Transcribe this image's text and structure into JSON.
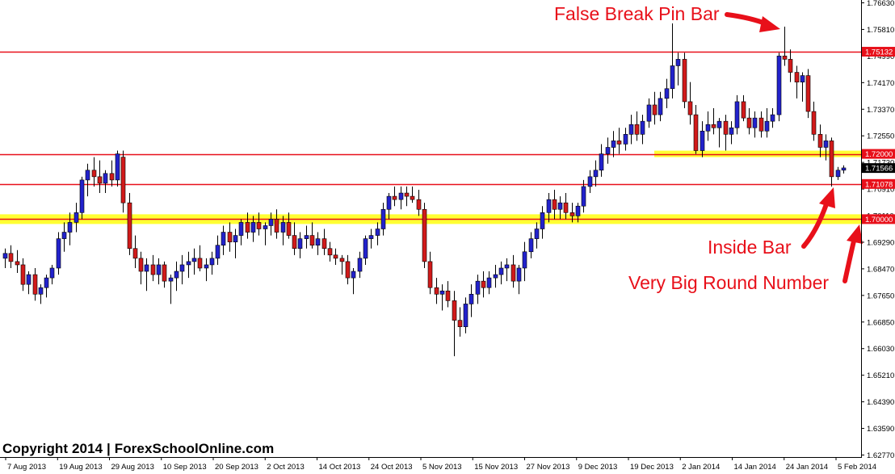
{
  "chart_data": {
    "type": "candlestick",
    "y_axis_ticks": [
      "1.76630",
      "1.75810",
      "1.74990",
      "1.74170",
      "1.73370",
      "1.72550",
      "1.71730",
      "1.70910",
      "1.70110",
      "1.69290",
      "1.68470",
      "1.67650",
      "1.66850",
      "1.66030",
      "1.65210",
      "1.64390",
      "1.63590",
      "1.62770"
    ],
    "ylim": [
      1.6277,
      1.7663
    ],
    "x_axis_labels": [
      "7 Aug 2013",
      "19 Aug 2013",
      "29 Aug 2013",
      "10 Sep 2013",
      "20 Sep 2013",
      "2 Oct 2013",
      "14 Oct 2013",
      "24 Oct 2013",
      "5 Nov 2013",
      "15 Nov 2013",
      "27 Nov 2013",
      "9 Dec 2013",
      "19 Dec 2013",
      "2 Jan 2014",
      "14 Jan 2014",
      "24 Jan 2014",
      "5 Feb 2014"
    ],
    "levels": [
      {
        "label": "1.75132",
        "value": 1.75132,
        "color": "#e8101a",
        "zone": false
      },
      {
        "label": "1.72000",
        "value": 1.72,
        "color": "#e8101a",
        "zone": true
      },
      {
        "label": "1.71078",
        "value": 1.71078,
        "color": "#e8101a",
        "zone": false
      },
      {
        "label": "1.70000",
        "value": 1.7,
        "color": "#e8101a",
        "zone": true
      }
    ],
    "current_price": "1.71566",
    "current_value": 1.71566,
    "candles": [
      [
        1.688,
        1.691,
        1.685,
        1.6895
      ],
      [
        1.6895,
        1.692,
        1.685,
        1.687
      ],
      [
        1.687,
        1.6905,
        1.6835,
        1.686
      ],
      [
        1.686,
        1.688,
        1.678,
        1.68
      ],
      [
        1.68,
        1.684,
        1.677,
        1.683
      ],
      [
        1.683,
        1.685,
        1.675,
        1.677
      ],
      [
        1.677,
        1.68,
        1.674,
        1.679
      ],
      [
        1.679,
        1.683,
        1.676,
        1.682
      ],
      [
        1.682,
        1.686,
        1.68,
        1.685
      ],
      [
        1.685,
        1.696,
        1.683,
        1.694
      ],
      [
        1.694,
        1.699,
        1.69,
        1.696
      ],
      [
        1.696,
        1.702,
        1.692,
        1.699
      ],
      [
        1.699,
        1.705,
        1.696,
        1.702
      ],
      [
        1.702,
        1.713,
        1.7,
        1.712
      ],
      [
        1.712,
        1.717,
        1.707,
        1.715
      ],
      [
        1.715,
        1.719,
        1.71,
        1.713
      ],
      [
        1.713,
        1.718,
        1.708,
        1.711
      ],
      [
        1.711,
        1.715,
        1.708,
        1.714
      ],
      [
        1.714,
        1.718,
        1.71,
        1.712
      ],
      [
        1.712,
        1.721,
        1.71,
        1.72
      ],
      [
        1.719,
        1.721,
        1.702,
        1.705
      ],
      [
        1.705,
        1.708,
        1.689,
        1.691
      ],
      [
        1.691,
        1.695,
        1.685,
        1.688
      ],
      [
        1.688,
        1.69,
        1.68,
        1.684
      ],
      [
        1.684,
        1.688,
        1.678,
        1.686
      ],
      [
        1.686,
        1.689,
        1.681,
        1.683
      ],
      [
        1.683,
        1.688,
        1.68,
        1.686
      ],
      [
        1.686,
        1.687,
        1.679,
        1.681
      ],
      [
        1.681,
        1.683,
        1.674,
        1.682
      ],
      [
        1.682,
        1.687,
        1.678,
        1.684
      ],
      [
        1.684,
        1.689,
        1.68,
        1.686
      ],
      [
        1.686,
        1.69,
        1.682,
        1.687
      ],
      [
        1.687,
        1.691,
        1.683,
        1.688
      ],
      [
        1.688,
        1.692,
        1.684,
        1.685
      ],
      [
        1.685,
        1.688,
        1.681,
        1.686
      ],
      [
        1.686,
        1.69,
        1.683,
        1.688
      ],
      [
        1.688,
        1.695,
        1.686,
        1.692
      ],
      [
        1.692,
        1.698,
        1.689,
        1.696
      ],
      [
        1.696,
        1.699,
        1.69,
        1.693
      ],
      [
        1.693,
        1.697,
        1.688,
        1.695
      ],
      [
        1.695,
        1.7,
        1.692,
        1.699
      ],
      [
        1.699,
        1.702,
        1.694,
        1.696
      ],
      [
        1.696,
        1.701,
        1.693,
        1.699
      ],
      [
        1.699,
        1.702,
        1.695,
        1.697
      ],
      [
        1.697,
        1.699,
        1.692,
        1.698
      ],
      [
        1.698,
        1.702,
        1.695,
        1.7
      ],
      [
        1.7,
        1.703,
        1.694,
        1.696
      ],
      [
        1.696,
        1.701,
        1.692,
        1.699
      ],
      [
        1.699,
        1.702,
        1.694,
        1.695
      ],
      [
        1.695,
        1.699,
        1.689,
        1.691
      ],
      [
        1.691,
        1.696,
        1.688,
        1.694
      ],
      [
        1.694,
        1.698,
        1.691,
        1.695
      ],
      [
        1.695,
        1.699,
        1.691,
        1.692
      ],
      [
        1.692,
        1.696,
        1.689,
        1.694
      ],
      [
        1.694,
        1.697,
        1.689,
        1.691
      ],
      [
        1.691,
        1.693,
        1.687,
        1.689
      ],
      [
        1.689,
        1.691,
        1.686,
        1.688
      ],
      [
        1.688,
        1.689,
        1.683,
        1.687
      ],
      [
        1.687,
        1.689,
        1.68,
        1.682
      ],
      [
        1.682,
        1.685,
        1.677,
        1.684
      ],
      [
        1.684,
        1.69,
        1.682,
        1.688
      ],
      [
        1.688,
        1.695,
        1.686,
        1.694
      ],
      [
        1.694,
        1.697,
        1.691,
        1.695
      ],
      [
        1.695,
        1.699,
        1.692,
        1.697
      ],
      [
        1.697,
        1.705,
        1.695,
        1.703
      ],
      [
        1.703,
        1.708,
        1.7,
        1.707
      ],
      [
        1.707,
        1.71,
        1.704,
        1.706
      ],
      [
        1.706,
        1.71,
        1.703,
        1.708
      ],
      [
        1.708,
        1.71,
        1.704,
        1.707
      ],
      [
        1.707,
        1.71,
        1.705,
        1.706
      ],
      [
        1.706,
        1.709,
        1.701,
        1.703
      ],
      [
        1.703,
        1.705,
        1.685,
        1.687
      ],
      [
        1.687,
        1.69,
        1.677,
        1.679
      ],
      [
        1.679,
        1.682,
        1.674,
        1.677
      ],
      [
        1.677,
        1.68,
        1.672,
        1.678
      ],
      [
        1.678,
        1.681,
        1.673,
        1.675
      ],
      [
        1.675,
        1.678,
        1.658,
        1.669
      ],
      [
        1.669,
        1.673,
        1.664,
        1.667
      ],
      [
        1.667,
        1.676,
        1.665,
        1.674
      ],
      [
        1.674,
        1.68,
        1.67,
        1.677
      ],
      [
        1.677,
        1.683,
        1.674,
        1.681
      ],
      [
        1.681,
        1.684,
        1.676,
        1.679
      ],
      [
        1.679,
        1.684,
        1.677,
        1.682
      ],
      [
        1.682,
        1.686,
        1.679,
        1.683
      ],
      [
        1.683,
        1.687,
        1.68,
        1.685
      ],
      [
        1.685,
        1.688,
        1.681,
        1.686
      ],
      [
        1.686,
        1.689,
        1.679,
        1.681
      ],
      [
        1.681,
        1.686,
        1.677,
        1.685
      ],
      [
        1.685,
        1.693,
        1.681,
        1.69
      ],
      [
        1.69,
        1.696,
        1.688,
        1.694
      ],
      [
        1.694,
        1.699,
        1.691,
        1.697
      ],
      [
        1.697,
        1.704,
        1.694,
        1.702
      ],
      [
        1.702,
        1.708,
        1.699,
        1.706
      ],
      [
        1.706,
        1.709,
        1.7,
        1.703
      ],
      [
        1.703,
        1.707,
        1.7,
        1.705
      ],
      [
        1.705,
        1.708,
        1.7,
        1.702
      ],
      [
        1.702,
        1.705,
        1.699,
        1.701
      ],
      [
        1.701,
        1.705,
        1.699,
        1.704
      ],
      [
        1.704,
        1.712,
        1.702,
        1.71
      ],
      [
        1.71,
        1.715,
        1.708,
        1.713
      ],
      [
        1.713,
        1.718,
        1.71,
        1.715
      ],
      [
        1.715,
        1.723,
        1.713,
        1.72
      ],
      [
        1.72,
        1.725,
        1.717,
        1.722
      ],
      [
        1.722,
        1.727,
        1.719,
        1.724
      ],
      [
        1.724,
        1.728,
        1.72,
        1.723
      ],
      [
        1.723,
        1.728,
        1.721,
        1.726
      ],
      [
        1.726,
        1.732,
        1.723,
        1.729
      ],
      [
        1.729,
        1.733,
        1.724,
        1.726
      ],
      [
        1.726,
        1.732,
        1.723,
        1.73
      ],
      [
        1.73,
        1.737,
        1.728,
        1.735
      ],
      [
        1.735,
        1.739,
        1.729,
        1.732
      ],
      [
        1.732,
        1.739,
        1.73,
        1.737
      ],
      [
        1.737,
        1.743,
        1.734,
        1.74
      ],
      [
        1.74,
        1.76,
        1.737,
        1.747
      ],
      [
        1.747,
        1.751,
        1.741,
        1.749
      ],
      [
        1.749,
        1.751,
        1.734,
        1.736
      ],
      [
        1.736,
        1.742,
        1.729,
        1.732
      ],
      [
        1.732,
        1.735,
        1.72,
        1.721
      ],
      [
        1.721,
        1.73,
        1.719,
        1.727
      ],
      [
        1.727,
        1.733,
        1.724,
        1.729
      ],
      [
        1.729,
        1.734,
        1.726,
        1.728
      ],
      [
        1.728,
        1.731,
        1.722,
        1.73
      ],
      [
        1.73,
        1.732,
        1.721,
        1.726
      ],
      [
        1.726,
        1.73,
        1.723,
        1.728
      ],
      [
        1.728,
        1.738,
        1.726,
        1.736
      ],
      [
        1.736,
        1.738,
        1.73,
        1.731
      ],
      [
        1.731,
        1.734,
        1.726,
        1.728
      ],
      [
        1.728,
        1.733,
        1.725,
        1.731
      ],
      [
        1.731,
        1.733,
        1.725,
        1.727
      ],
      [
        1.727,
        1.734,
        1.725,
        1.73
      ],
      [
        1.73,
        1.734,
        1.728,
        1.732
      ],
      [
        1.732,
        1.751,
        1.73,
        1.75
      ],
      [
        1.75,
        1.759,
        1.747,
        1.749
      ],
      [
        1.749,
        1.752,
        1.742,
        1.745
      ],
      [
        1.745,
        1.747,
        1.737,
        1.742
      ],
      [
        1.742,
        1.745,
        1.736,
        1.744
      ],
      [
        1.744,
        1.746,
        1.731,
        1.733
      ],
      [
        1.733,
        1.736,
        1.724,
        1.726
      ],
      [
        1.726,
        1.729,
        1.719,
        1.722
      ],
      [
        1.722,
        1.726,
        1.718,
        1.724
      ],
      [
        1.724,
        1.725,
        1.71,
        1.713
      ],
      [
        1.713,
        1.716,
        1.712,
        1.715
      ],
      [
        1.715,
        1.7165,
        1.714,
        1.7157
      ]
    ]
  },
  "copyright": "Copyright 2014 | ForexSchoolOnline.com",
  "annotations": {
    "pin_bar": "False Break Pin Bar",
    "inside_bar": "Inside Bar",
    "round_number": "Very Big Round Number"
  },
  "colors": {
    "bull": "#2222cc",
    "bear": "#d11a1a",
    "wick": "#000000",
    "level_line": "#e8101a",
    "zone": "#ffff33",
    "annotation": "#e8101a",
    "axis": "#000000"
  }
}
